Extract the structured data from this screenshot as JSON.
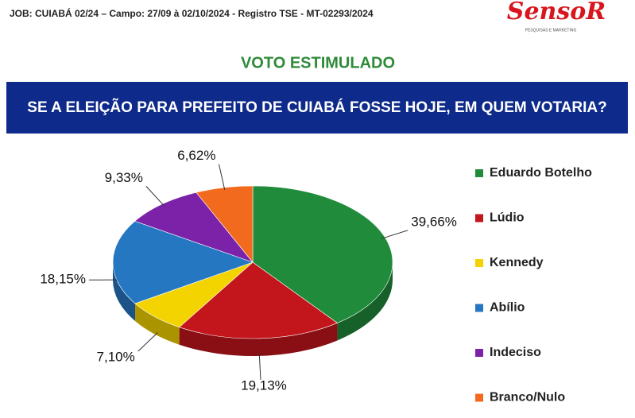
{
  "header": {
    "job": "JOB: CUIABÁ 02/24 – Campo: 27/09 à 02/10/2024  - Registro TSE - MT-02293/2024",
    "logo": "SensoR",
    "logo_tagline": "PESQUISAS E MARKETING"
  },
  "chart_data": {
    "type": "pie",
    "title": "VOTO ESTIMULADO",
    "subtitle": "SE A ELEIÇÃO PARA PREFEITO DE CUIABÁ FOSSE HOJE, EM QUEM VOTARIA?",
    "categories": [
      "Eduardo Botelho",
      "Lúdio",
      "Kennedy",
      "Abílio",
      "Indeciso",
      "Branco/Nulo"
    ],
    "values": [
      39.66,
      19.13,
      7.1,
      18.15,
      9.33,
      6.62
    ],
    "value_labels": [
      "39,66%",
      "19,13%",
      "7,10%",
      "18,15%",
      "9,33%",
      "6,62%"
    ],
    "colors": [
      "#1f8b3b",
      "#c3161c",
      "#f3d400",
      "#2677c2",
      "#7b22a8",
      "#f26a1e"
    ],
    "legend": "right"
  }
}
